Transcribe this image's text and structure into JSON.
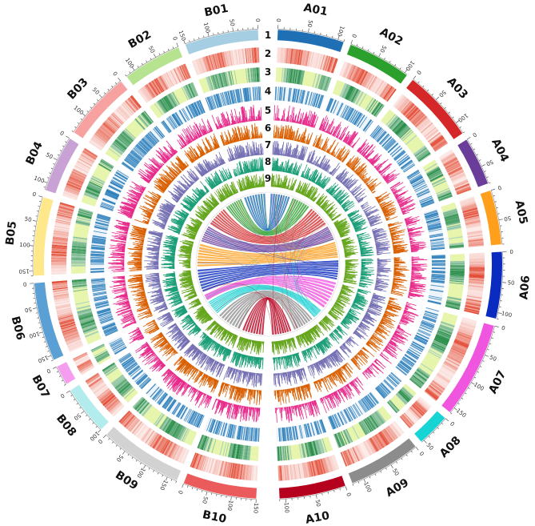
{
  "diagram": {
    "type": "circos",
    "chromosomes": [
      {
        "name": "A01",
        "length": 110,
        "color": "#1f6fb4"
      },
      {
        "name": "A02",
        "length": 105,
        "color": "#2ca02c"
      },
      {
        "name": "A03",
        "length": 120,
        "color": "#d62728"
      },
      {
        "name": "A04",
        "length": 80,
        "color": "#6a3d9a"
      },
      {
        "name": "A05",
        "length": 90,
        "color": "#ff9f1c"
      },
      {
        "name": "A06",
        "length": 110,
        "color": "#0a2bbf"
      },
      {
        "name": "A07",
        "length": 160,
        "color": "#f055e0"
      },
      {
        "name": "A08",
        "length": 55,
        "color": "#17d4d4"
      },
      {
        "name": "A09",
        "length": 120,
        "color": "#8c8c8c"
      },
      {
        "name": "A10",
        "length": 110,
        "color": "#b5001e"
      },
      {
        "name": "B10",
        "length": 150,
        "color": "#ec5b5b"
      },
      {
        "name": "B09",
        "length": 170,
        "color": "#d2d2d2"
      },
      {
        "name": "B08",
        "length": 100,
        "color": "#b2ecec"
      },
      {
        "name": "B07",
        "length": 40,
        "color": "#f59ef0"
      },
      {
        "name": "B06",
        "length": 160,
        "color": "#5aa0d4"
      },
      {
        "name": "B05",
        "length": 160,
        "color": "#ffe88a"
      },
      {
        "name": "B04",
        "length": 115,
        "color": "#c8a2d4"
      },
      {
        "name": "B03",
        "length": 140,
        "color": "#f7a1a1"
      },
      {
        "name": "B02",
        "length": 120,
        "color": "#b6e38f"
      },
      {
        "name": "B01",
        "length": 150,
        "color": "#a6cee3"
      }
    ],
    "tracks": [
      {
        "number": "1",
        "kind": "ideogram"
      },
      {
        "number": "2",
        "kind": "heatmap",
        "color": "#e34a33"
      },
      {
        "number": "3",
        "kind": "heatmap",
        "color": "#238b45"
      },
      {
        "number": "4",
        "kind": "barcode",
        "color": "#3182bd"
      },
      {
        "number": "5",
        "kind": "histogram",
        "color": "#e7298a"
      },
      {
        "number": "6",
        "kind": "histogram",
        "color": "#d95f02"
      },
      {
        "number": "7",
        "kind": "histogram",
        "color": "#7570b3"
      },
      {
        "number": "8",
        "kind": "histogram",
        "color": "#1b9e77"
      },
      {
        "number": "9",
        "kind": "histogram",
        "color": "#66a61e"
      }
    ],
    "links": [
      {
        "from": "A01",
        "to": "B01"
      },
      {
        "from": "A02",
        "to": "B02"
      },
      {
        "from": "A03",
        "to": "B03"
      },
      {
        "from": "A04",
        "to": "B04"
      },
      {
        "from": "A05",
        "to": "B05"
      },
      {
        "from": "A06",
        "to": "B06"
      },
      {
        "from": "A07",
        "to": "B07"
      },
      {
        "from": "A08",
        "to": "B08"
      },
      {
        "from": "A09",
        "to": "B09"
      },
      {
        "from": "A10",
        "to": "B10"
      }
    ]
  }
}
